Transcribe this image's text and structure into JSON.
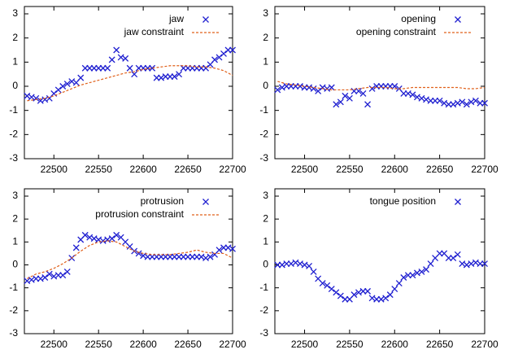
{
  "chart_data": [
    {
      "type": "scatter",
      "xlim": [
        22467,
        22700
      ],
      "ylim": [
        -3,
        3
      ],
      "xticks": [
        22500,
        22550,
        22600,
        22650,
        22700
      ],
      "yticks": [
        -3,
        -2,
        -1,
        0,
        1,
        2,
        3
      ],
      "x": [
        22470,
        22475,
        22480,
        22485,
        22490,
        22495,
        22500,
        22505,
        22510,
        22515,
        22520,
        22525,
        22530,
        22535,
        22540,
        22545,
        22550,
        22555,
        22560,
        22565,
        22570,
        22575,
        22580,
        22585,
        22590,
        22595,
        22600,
        22605,
        22610,
        22615,
        22620,
        22625,
        22630,
        22635,
        22640,
        22645,
        22650,
        22655,
        22660,
        22665,
        22670,
        22675,
        22680,
        22685,
        22690,
        22695,
        22700
      ],
      "series": [
        {
          "name": "jaw",
          "type": "scatter",
          "color": "#1f1fd0",
          "values": [
            -0.4,
            -0.45,
            -0.5,
            -0.6,
            -0.55,
            -0.5,
            -0.3,
            -0.15,
            0,
            0.1,
            0.2,
            0.15,
            0.35,
            0.75,
            0.75,
            0.75,
            0.75,
            0.75,
            0.75,
            1.1,
            1.5,
            1.2,
            1.15,
            0.75,
            0.5,
            0.75,
            0.75,
            0.75,
            0.75,
            0.35,
            0.35,
            0.4,
            0.4,
            0.4,
            0.5,
            0.75,
            0.75,
            0.75,
            0.75,
            0.75,
            0.75,
            0.9,
            1.1,
            1.2,
            1.35,
            1.5,
            1.5
          ]
        },
        {
          "name": "jaw constraint",
          "type": "line",
          "color": "#e0601a",
          "dashed": true,
          "x": [
            22470,
            22480,
            22490,
            22500,
            22510,
            22520,
            22530,
            22540,
            22550,
            22560,
            22570,
            22580,
            22590,
            22600,
            22610,
            22620,
            22630,
            22640,
            22650,
            22660,
            22670,
            22680,
            22690,
            22700
          ],
          "values": [
            -0.6,
            -0.55,
            -0.5,
            -0.4,
            -0.25,
            -0.1,
            0.05,
            0.15,
            0.25,
            0.35,
            0.45,
            0.55,
            0.6,
            0.7,
            0.75,
            0.8,
            0.85,
            0.85,
            0.85,
            0.8,
            0.8,
            0.75,
            0.65,
            0.45
          ]
        }
      ]
    },
    {
      "type": "scatter",
      "xlim": [
        22467,
        22700
      ],
      "ylim": [
        -3,
        3
      ],
      "xticks": [
        22500,
        22550,
        22600,
        22650,
        22700
      ],
      "yticks": [
        -3,
        -2,
        -1,
        0,
        1,
        2,
        3
      ],
      "x": [
        22470,
        22475,
        22480,
        22485,
        22490,
        22495,
        22500,
        22505,
        22510,
        22515,
        22520,
        22525,
        22530,
        22535,
        22540,
        22545,
        22550,
        22555,
        22560,
        22565,
        22570,
        22575,
        22580,
        22585,
        22590,
        22595,
        22600,
        22605,
        22610,
        22615,
        22620,
        22625,
        22630,
        22635,
        22640,
        22645,
        22650,
        22655,
        22660,
        22665,
        22670,
        22675,
        22680,
        22685,
        22690,
        22695,
        22700
      ],
      "series": [
        {
          "name": "opening",
          "type": "scatter",
          "color": "#1f1fd0",
          "values": [
            -0.15,
            -0.05,
            0,
            0,
            0,
            0,
            -0.05,
            -0.05,
            -0.1,
            -0.2,
            -0.05,
            -0.1,
            -0.05,
            -0.75,
            -0.65,
            -0.4,
            -0.5,
            -0.2,
            -0.2,
            -0.3,
            -0.75,
            -0.1,
            0,
            0,
            0,
            0,
            0,
            -0.1,
            -0.3,
            -0.3,
            -0.35,
            -0.45,
            -0.5,
            -0.55,
            -0.6,
            -0.6,
            -0.6,
            -0.7,
            -0.75,
            -0.75,
            -0.7,
            -0.65,
            -0.75,
            -0.65,
            -0.6,
            -0.7,
            -0.7
          ]
        },
        {
          "name": "opening constraint",
          "type": "line",
          "color": "#e0601a",
          "dashed": true,
          "x": [
            22470,
            22480,
            22490,
            22500,
            22510,
            22520,
            22530,
            22540,
            22550,
            22560,
            22570,
            22580,
            22590,
            22600,
            22610,
            22620,
            22630,
            22640,
            22650,
            22660,
            22670,
            22680,
            22690,
            22700
          ],
          "values": [
            0.2,
            0.1,
            0.05,
            0,
            -0.05,
            -0.1,
            -0.15,
            -0.15,
            -0.15,
            -0.1,
            -0.05,
            -0.05,
            -0.05,
            -0.1,
            -0.1,
            -0.05,
            -0.05,
            -0.05,
            -0.05,
            -0.05,
            -0.05,
            -0.1,
            -0.1,
            -0.05
          ]
        }
      ]
    },
    {
      "type": "scatter",
      "xlim": [
        22467,
        22700
      ],
      "ylim": [
        -3,
        3
      ],
      "xticks": [
        22500,
        22550,
        22600,
        22650,
        22700
      ],
      "yticks": [
        -3,
        -2,
        -1,
        0,
        1,
        2,
        3
      ],
      "x": [
        22470,
        22475,
        22480,
        22485,
        22490,
        22495,
        22500,
        22505,
        22510,
        22515,
        22520,
        22525,
        22530,
        22535,
        22540,
        22545,
        22550,
        22555,
        22560,
        22565,
        22570,
        22575,
        22580,
        22585,
        22590,
        22595,
        22600,
        22605,
        22610,
        22615,
        22620,
        22625,
        22630,
        22635,
        22640,
        22645,
        22650,
        22655,
        22660,
        22665,
        22670,
        22675,
        22680,
        22685,
        22690,
        22695,
        22700
      ],
      "series": [
        {
          "name": "protrusion",
          "type": "scatter",
          "color": "#1f1fd0",
          "values": [
            -0.7,
            -0.65,
            -0.6,
            -0.6,
            -0.55,
            -0.4,
            -0.5,
            -0.45,
            -0.45,
            -0.3,
            0.3,
            0.75,
            1.1,
            1.3,
            1.2,
            1.15,
            1.1,
            1.05,
            1.1,
            1.15,
            1.3,
            1.2,
            1.0,
            0.8,
            0.6,
            0.5,
            0.4,
            0.35,
            0.35,
            0.35,
            0.35,
            0.35,
            0.35,
            0.35,
            0.35,
            0.35,
            0.35,
            0.35,
            0.35,
            0.35,
            0.3,
            0.35,
            0.45,
            0.65,
            0.75,
            0.75,
            0.7
          ]
        },
        {
          "name": "protrusion constraint",
          "type": "line",
          "color": "#e0601a",
          "dashed": true,
          "x": [
            22470,
            22480,
            22490,
            22500,
            22510,
            22520,
            22530,
            22540,
            22550,
            22560,
            22570,
            22580,
            22590,
            22600,
            22610,
            22620,
            22630,
            22640,
            22650,
            22660,
            22670,
            22680,
            22690,
            22700
          ],
          "values": [
            -0.6,
            -0.4,
            -0.3,
            -0.15,
            0.05,
            0.3,
            0.6,
            0.85,
            1.0,
            1.05,
            1.0,
            0.8,
            0.6,
            0.5,
            0.45,
            0.45,
            0.45,
            0.5,
            0.55,
            0.65,
            0.55,
            0.5,
            0.5,
            0.3
          ]
        }
      ]
    },
    {
      "type": "scatter",
      "xlim": [
        22467,
        22700
      ],
      "ylim": [
        -3,
        3
      ],
      "xticks": [
        22500,
        22550,
        22600,
        22650,
        22700
      ],
      "yticks": [
        -3,
        -2,
        -1,
        0,
        1,
        2,
        3
      ],
      "x": [
        22470,
        22475,
        22480,
        22485,
        22490,
        22495,
        22500,
        22505,
        22510,
        22515,
        22520,
        22525,
        22530,
        22535,
        22540,
        22545,
        22550,
        22555,
        22560,
        22565,
        22570,
        22575,
        22580,
        22585,
        22590,
        22595,
        22600,
        22605,
        22610,
        22615,
        22620,
        22625,
        22630,
        22635,
        22640,
        22645,
        22650,
        22655,
        22660,
        22665,
        22670,
        22675,
        22680,
        22685,
        22690,
        22695,
        22700
      ],
      "series": [
        {
          "name": "tongue position",
          "type": "scatter",
          "color": "#1f1fd0",
          "values": [
            0,
            0,
            0.05,
            0.05,
            0.1,
            0.05,
            0,
            -0.05,
            -0.3,
            -0.6,
            -0.8,
            -0.9,
            -1.05,
            -1.2,
            -1.35,
            -1.5,
            -1.5,
            -1.3,
            -1.2,
            -1.15,
            -1.15,
            -1.45,
            -1.5,
            -1.5,
            -1.45,
            -1.3,
            -1.05,
            -0.8,
            -0.55,
            -0.45,
            -0.45,
            -0.35,
            -0.3,
            -0.2,
            0.05,
            0.3,
            0.5,
            0.5,
            0.3,
            0.3,
            0.45,
            0.05,
            0,
            0.05,
            0.1,
            0.05,
            0.05
          ]
        }
      ]
    }
  ]
}
